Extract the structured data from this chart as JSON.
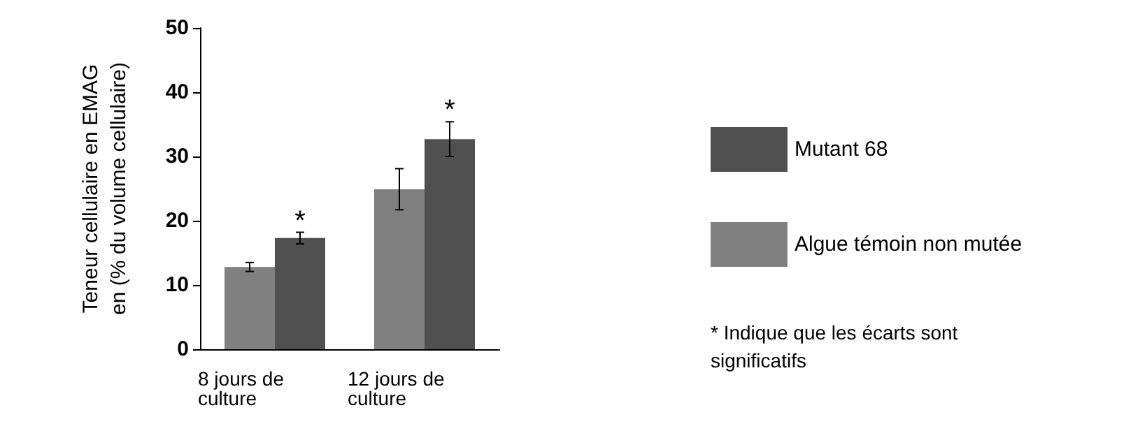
{
  "chart_data": {
    "type": "bar",
    "ylabel": "Teneur cellulaire en EMAG\nen (% du volume cellulaire)",
    "categories": [
      "8 jours de\nculture",
      "12 jours de\nculture"
    ],
    "series": [
      {
        "name": "Algue témoin non mutée",
        "color": "#808080",
        "values": [
          12.8,
          24.9
        ],
        "errors": [
          0.7,
          3.2
        ]
      },
      {
        "name": "Mutant 68",
        "color": "#505050",
        "values": [
          17.3,
          32.7
        ],
        "errors": [
          0.9,
          2.7
        ]
      }
    ],
    "ylim": [
      0,
      50
    ],
    "yticks": [
      0,
      10,
      20,
      30,
      40,
      50
    ],
    "grid": false,
    "legend": "right",
    "annotations": [
      "*",
      "*",
      "* Indique que les écarts sont significatifs"
    ]
  }
}
